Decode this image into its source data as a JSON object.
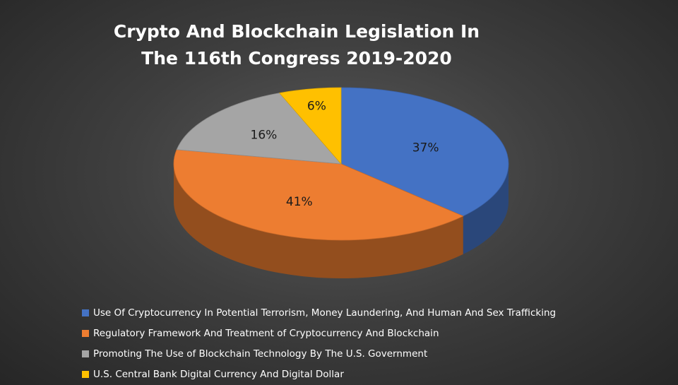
{
  "chart_data": {
    "type": "pie",
    "title": [
      "Crypto And Blockchain Legislation In",
      "The 116th Congress 2019-2020"
    ],
    "slices": [
      {
        "label": "Use Of Cryptocurrency In Potential Terrorism, Money Laundering, And Human And Sex Trafficking",
        "value": 37,
        "value_label": "37%",
        "color": "#4472C4"
      },
      {
        "label": "Regulatory Framework And Treatment of Cryptocurrency And Blockchain",
        "value": 41,
        "value_label": "41%",
        "color": "#ED7D31"
      },
      {
        "label": "Promoting The Use of Blockchain Technology By The U.S. Government",
        "value": 16,
        "value_label": "16%",
        "color": "#A5A5A5"
      },
      {
        "label": "U.S. Central Bank Digital Currency And Digital Dollar",
        "value": 6,
        "value_label": "6%",
        "color": "#FFC000"
      }
    ],
    "legend_position": "bottom",
    "style": "3d"
  }
}
